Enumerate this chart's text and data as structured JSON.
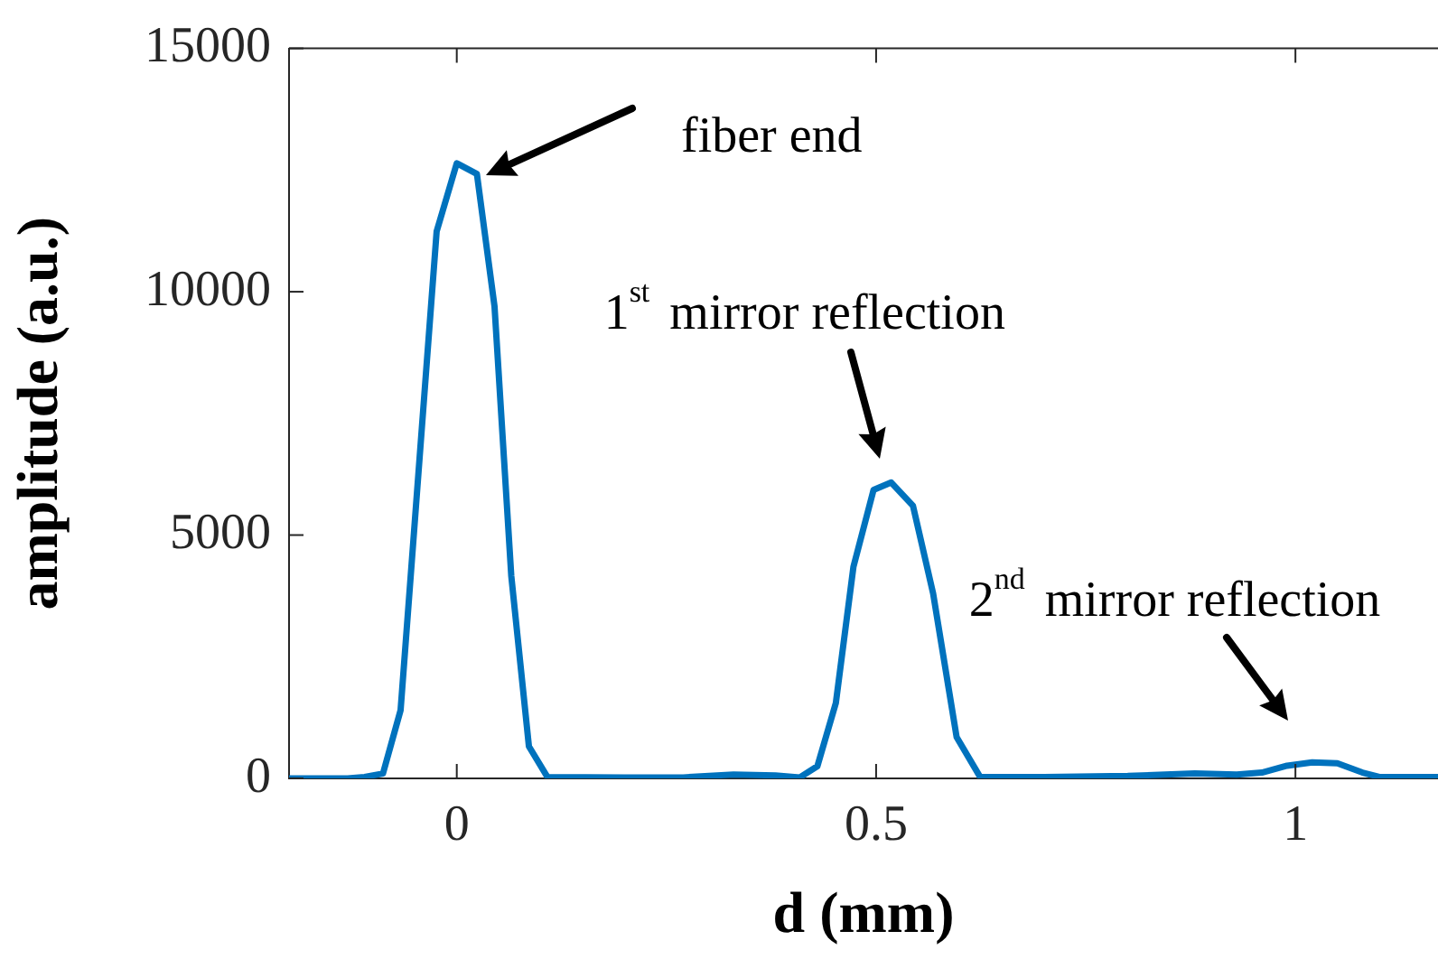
{
  "chart_data": {
    "type": "line",
    "xlabel": "d (mm)",
    "ylabel": "amplitude (a.u.)",
    "x": [
      -0.2,
      -0.13,
      -0.11,
      -0.088,
      -0.067,
      -0.024,
      0,
      0.024,
      0.045,
      0.065,
      0.086,
      0.108,
      0.2,
      0.27,
      0.33,
      0.38,
      0.409,
      0.43,
      0.452,
      0.473,
      0.497,
      0.518,
      0.544,
      0.568,
      0.596,
      0.624,
      0.7,
      0.8,
      0.88,
      0.93,
      0.96,
      0.99,
      1.02,
      1.05,
      1.08,
      1.1,
      1.17
    ],
    "series": [
      {
        "color": "#0072bd",
        "values": [
          0,
          0,
          30,
          100,
          1400,
          11240,
          12640,
          12420,
          9700,
          4160,
          660,
          30,
          20,
          20,
          80,
          60,
          20,
          250,
          1550,
          4350,
          5930,
          6080,
          5600,
          3800,
          850,
          30,
          30,
          50,
          100,
          80,
          120,
          260,
          330,
          310,
          120,
          30,
          30
        ]
      }
    ],
    "xlim": [
      -0.2,
      1.17
    ],
    "xticks": [
      0,
      0.5,
      1
    ],
    "ylim": [
      0,
      15000
    ],
    "yticks": [
      0,
      5000,
      10000,
      15000
    ],
    "annotations": [
      "fiber end",
      {
        "text": "1$^{st}$ mirror reflection",
        "x": 0.518,
        "y": 6080
      },
      {
        "text": "2$^{nd}$ mirror reflection",
        "x": 1.02,
        "y": 330
      }
    ]
  }
}
